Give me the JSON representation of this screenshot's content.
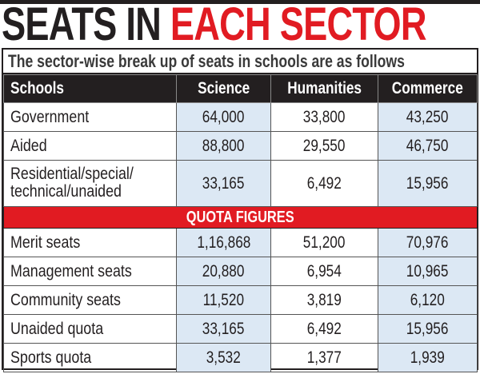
{
  "title": {
    "part1": "SEATS IN",
    "part2": "EACH SECTOR"
  },
  "subtitle": "The sector-wise break up of seats in schools are as follows",
  "colors": {
    "accent": "#e11b22",
    "header": "#231f20",
    "highlight": "#dce8f4"
  },
  "chart_data": {
    "type": "table",
    "columns": [
      "Schools",
      "Science",
      "Humanities",
      "Commerce"
    ],
    "rows": [
      [
        "Government",
        "64,000",
        "33,800",
        "43,250"
      ],
      [
        "Aided",
        "88,800",
        "29,550",
        "46,750"
      ],
      [
        "Residential/special/ technical/unaided",
        "33,165",
        "6,492",
        "15,956"
      ]
    ],
    "section_label": "QUOTA FIGURES",
    "quota_rows": [
      [
        "Merit seats",
        "1,16,868",
        "51,200",
        "70,976"
      ],
      [
        "Management seats",
        "20,880",
        "6,954",
        "10,965"
      ],
      [
        "Community seats",
        "11,520",
        "3,819",
        "6,120"
      ],
      [
        "Unaided quota",
        "33,165",
        "6,492",
        "15,956"
      ],
      [
        "Sports quota",
        "3,532",
        "1,377",
        "1,939"
      ]
    ]
  }
}
